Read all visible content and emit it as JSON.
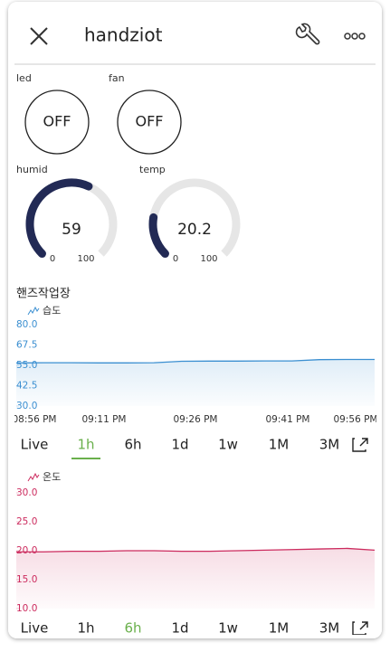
{
  "header": {
    "title": "handziot"
  },
  "widgets": [
    {
      "label": "led",
      "state": "OFF"
    },
    {
      "label": "fan",
      "state": "OFF"
    }
  ],
  "gauges": [
    {
      "label": "humid",
      "value": 59,
      "min": 0,
      "max": 100
    },
    {
      "label": "temp",
      "value": 20.2,
      "min": 0,
      "max": 100
    }
  ],
  "section_title": "핸즈작업장",
  "charts": [
    {
      "legend": "습도",
      "color": "#3b8fd1",
      "ylim": [
        30,
        80
      ],
      "yticks": [
        {
          "value": 80,
          "label": "80.0"
        },
        {
          "value": 67.5,
          "label": "67.5"
        },
        {
          "value": 55,
          "label": "55.0"
        },
        {
          "value": 42.5,
          "label": "42.5"
        },
        {
          "value": 30,
          "label": "30.0"
        }
      ],
      "xticks": [
        "08:56 PM",
        "09:11 PM",
        "09:26 PM",
        "09:41 PM",
        "09:56 PM"
      ],
      "values": [
        56.5,
        56.6,
        56.6,
        56.5,
        56.5,
        56.6,
        57.5,
        57.6,
        57.6,
        57.7,
        57.7,
        58.5,
        58.6,
        58.6
      ],
      "ranges": [
        "Live",
        "1h",
        "6h",
        "1d",
        "1w",
        "1M",
        "3M"
      ],
      "selected_range": 1
    },
    {
      "legend": "온도",
      "color": "#cc2b5e",
      "ylim": [
        10,
        30
      ],
      "yticks": [
        {
          "value": 30,
          "label": "30.0"
        },
        {
          "value": 25,
          "label": "25.0"
        },
        {
          "value": 20,
          "label": "20.0"
        },
        {
          "value": 15,
          "label": "15.0"
        },
        {
          "value": 10,
          "label": "10.0"
        }
      ],
      "values": [
        19.8,
        19.8,
        19.9,
        19.9,
        20.0,
        20.0,
        19.9,
        19.9,
        20.0,
        20.1,
        20.2,
        20.3,
        20.4,
        20.1
      ],
      "ranges": [
        "Live",
        "1h",
        "6h",
        "1d",
        "1w",
        "1M",
        "3M"
      ],
      "selected_range": 2
    }
  ]
}
